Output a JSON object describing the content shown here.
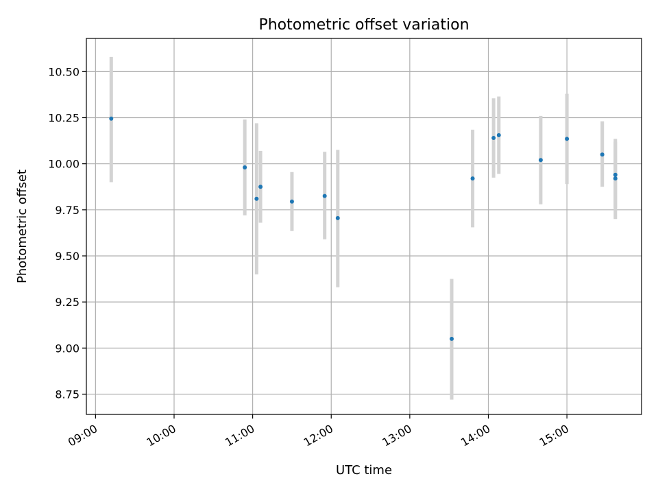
{
  "chart_data": {
    "type": "scatter",
    "title": "Photometric offset variation",
    "xlabel": "UTC time",
    "ylabel": "Photometric offset",
    "x_ticks": [
      "09:00",
      "10:00",
      "11:00",
      "12:00",
      "13:00",
      "14:00",
      "15:00"
    ],
    "y_ticks": [
      "8.75",
      "9.00",
      "9.25",
      "9.50",
      "9.75",
      "10.00",
      "10.25",
      "10.50"
    ],
    "xlim": [
      "08:53",
      "15:57"
    ],
    "ylim": [
      8.64,
      10.68
    ],
    "grid": true,
    "colors": {
      "point": "#1f77b4",
      "errorbar": "#d3d3d3",
      "grid": "#b0b0b0"
    },
    "points": [
      {
        "x": "09:12",
        "y": 10.245,
        "lower": 9.9,
        "upper": 10.58
      },
      {
        "x": "10:54",
        "y": 9.98,
        "lower": 9.72,
        "upper": 10.24
      },
      {
        "x": "11:03",
        "y": 9.81,
        "lower": 9.4,
        "upper": 10.22
      },
      {
        "x": "11:06",
        "y": 9.875,
        "lower": 9.68,
        "upper": 10.07
      },
      {
        "x": "11:30",
        "y": 9.795,
        "lower": 9.635,
        "upper": 9.955
      },
      {
        "x": "11:55",
        "y": 9.825,
        "lower": 9.59,
        "upper": 10.065
      },
      {
        "x": "12:05",
        "y": 9.705,
        "lower": 9.33,
        "upper": 10.075
      },
      {
        "x": "13:32",
        "y": 9.05,
        "lower": 8.72,
        "upper": 9.375
      },
      {
        "x": "13:48",
        "y": 9.92,
        "lower": 9.655,
        "upper": 10.185
      },
      {
        "x": "14:04",
        "y": 10.14,
        "lower": 9.925,
        "upper": 10.355
      },
      {
        "x": "14:08",
        "y": 10.155,
        "lower": 9.945,
        "upper": 10.365
      },
      {
        "x": "14:40",
        "y": 10.02,
        "lower": 9.78,
        "upper": 10.26
      },
      {
        "x": "15:00",
        "y": 10.135,
        "lower": 9.89,
        "upper": 10.38
      },
      {
        "x": "15:27",
        "y": 10.05,
        "lower": 9.875,
        "upper": 10.23
      },
      {
        "x": "15:37",
        "y": 9.94,
        "lower": 9.76,
        "upper": 10.12
      },
      {
        "x": "15:37",
        "y": 9.92,
        "lower": 9.7,
        "upper": 10.135
      }
    ]
  }
}
